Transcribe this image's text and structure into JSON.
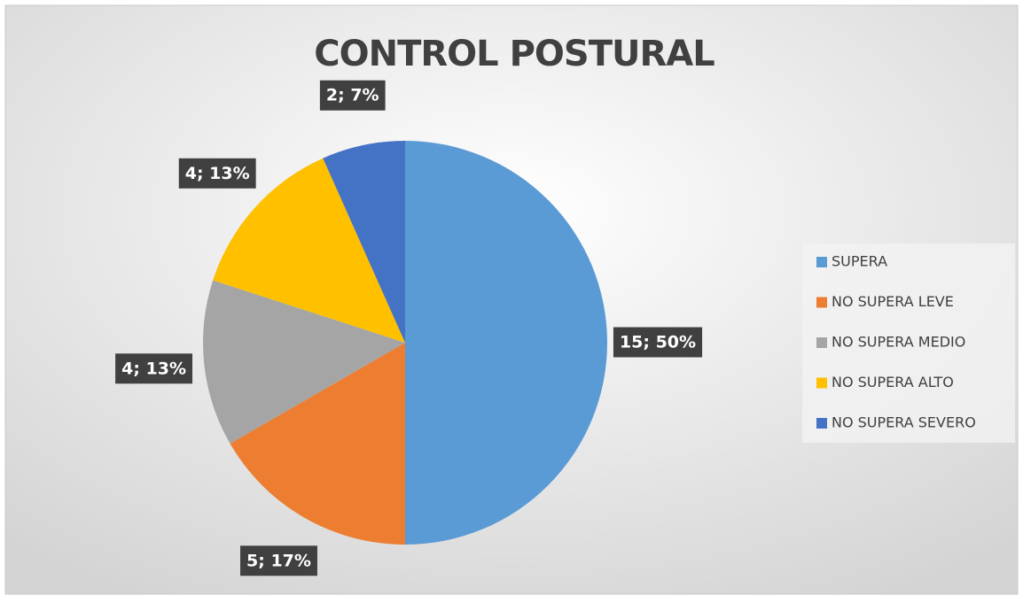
{
  "chart_data": {
    "type": "pie",
    "title": "CONTROL POSTURAL",
    "categories": [
      "SUPERA",
      "NO SUPERA LEVE",
      "NO SUPERA MEDIO",
      "NO SUPERA ALTO",
      "NO SUPERA SEVERO"
    ],
    "values": [
      15,
      5,
      4,
      4,
      2
    ],
    "value_labels": [
      "15; 50%",
      "5; 17%",
      "4; 13%",
      "4; 13%",
      "2; 7%"
    ],
    "colors": [
      "#5b9bd5",
      "#ed7d31",
      "#a5a5a5",
      "#ffc000",
      "#4472c4"
    ],
    "legend": "right"
  }
}
